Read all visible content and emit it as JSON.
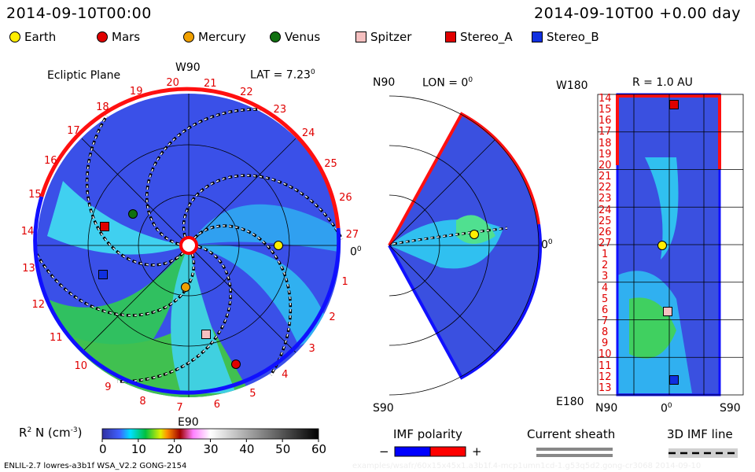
{
  "header": {
    "left_time": "2014-09-10T00:00",
    "right_time": "2014-09-10T00 +0.00 day"
  },
  "legend": [
    {
      "label": "Earth",
      "color": "#ffee00",
      "shape": "circle"
    },
    {
      "label": "Mars",
      "color": "#e00000",
      "shape": "circle"
    },
    {
      "label": "Mercury",
      "color": "#f0a000",
      "shape": "circle"
    },
    {
      "label": "Venus",
      "color": "#107010",
      "shape": "circle"
    },
    {
      "label": "Spitzer",
      "color": "#f5c0c0",
      "shape": "square"
    },
    {
      "label": "Stereo_A",
      "color": "#e00000",
      "shape": "square"
    },
    {
      "label": "Stereo_B",
      "color": "#1030e0",
      "shape": "square"
    }
  ],
  "ecliptic": {
    "title": "Ecliptic Plane",
    "top_label": "W90",
    "bottom_label": "E90",
    "right_label": "0",
    "lat_label": "LAT = 7.23",
    "degree_mark": "0",
    "day_labels": [
      "0",
      "1",
      "2",
      "3",
      "4",
      "5",
      "6",
      "7",
      "8",
      "9",
      "10",
      "11",
      "12",
      "13",
      "14",
      "15",
      "16",
      "17",
      "18",
      "19",
      "20",
      "21",
      "22",
      "23",
      "24",
      "25",
      "26",
      "27"
    ]
  },
  "meridional": {
    "top_label": "N90",
    "bottom_label": "S90",
    "right_label": "0",
    "lon_label": "LON = 0",
    "degree_mark": "0"
  },
  "radial": {
    "r_label": "R = 1.0 AU",
    "top_label": "W180",
    "bottom_label": "E180",
    "x_labels": [
      "N90",
      "0",
      "S90"
    ],
    "degree_mark": "0",
    "y_labels": [
      "14",
      "15",
      "16",
      "17",
      "18",
      "19",
      "20",
      "21",
      "22",
      "23",
      "24",
      "25",
      "26",
      "27",
      "1",
      "2",
      "3",
      "4",
      "5",
      "6",
      "7",
      "8",
      "9",
      "10",
      "11",
      "12",
      "13"
    ]
  },
  "colorbar": {
    "label": "R",
    "sup": "2",
    "label2": " N (cm",
    "sup2": "-3",
    "label3": ")",
    "ticks": [
      "0",
      "10",
      "20",
      "30",
      "40",
      "50",
      "60"
    ]
  },
  "imf_polarity": {
    "label": "IMF polarity",
    "minus": "−",
    "plus": "+",
    "neg_color": "#0000ff",
    "pos_color": "#ff0000"
  },
  "current_sheath": {
    "label": "Current sheath"
  },
  "imf_line": {
    "label": "3D IMF line"
  },
  "footer": {
    "left": "ENLIL-2.7 lowres-a3b1f WSA_V2.2 GONG-2154",
    "right": "examples/wsafr/60x15x45x1.a3b1f.4-mcp1umn1cd-1.g53q5d2.gong-cr3068   2014-09-10"
  }
}
